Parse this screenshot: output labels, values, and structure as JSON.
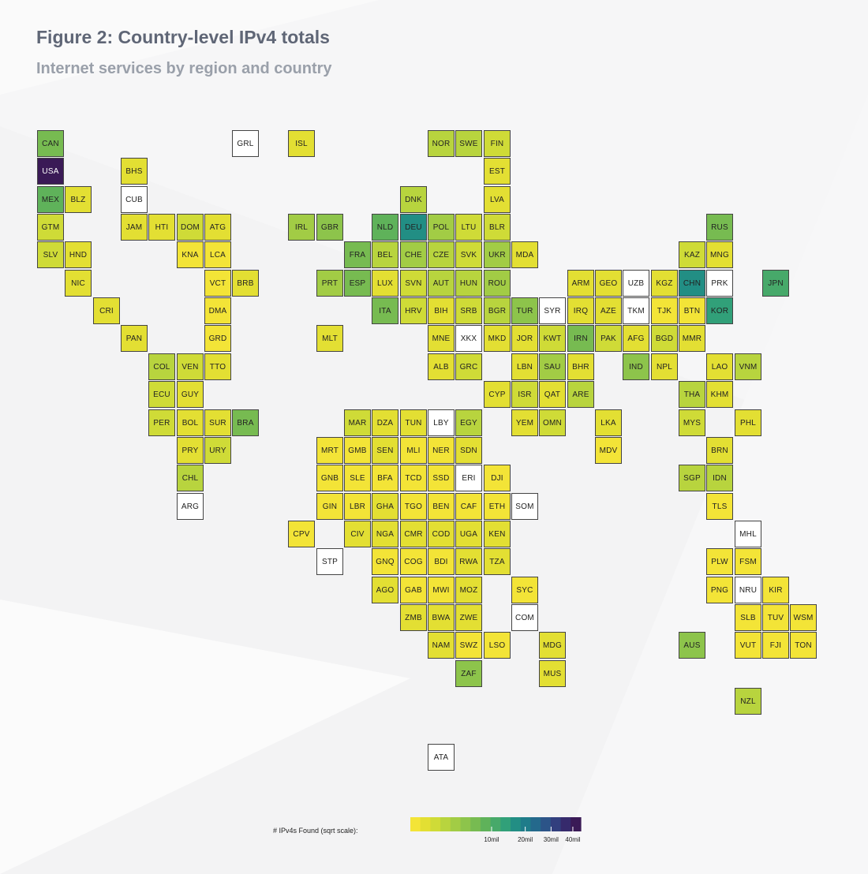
{
  "header": {
    "title": "Figure 2: Country-level IPv4 totals",
    "subtitle": "Internet services by region and country"
  },
  "legend": {
    "label": "# IPv4s Found (sqrt scale):",
    "ticks": [
      "10mil",
      "20mil",
      "30mil",
      "40mil"
    ],
    "tick_values": [
      10,
      20,
      30,
      40
    ],
    "max": 44
  },
  "colors": {
    "no_data": "#ffffff",
    "scale": [
      "#f3e437",
      "#e3df33",
      "#cfdb37",
      "#b8d43e",
      "#a2cc45",
      "#8dc44b",
      "#77bb51",
      "#5fb25a",
      "#47a96a",
      "#31a079",
      "#228e84",
      "#1f7c8a",
      "#24698c",
      "#2c5488",
      "#323f7e",
      "#362a6c",
      "#3a1a56"
    ]
  },
  "chart_data": {
    "type": "heatmap",
    "title": "Figure 2: Country-level IPv4 totals",
    "subtitle": "Internet services by region and country",
    "legend_title": "# IPv4s Found (sqrt scale)",
    "scale": "sqrt",
    "unit": "millions of IPv4 addresses",
    "tiles": [
      {
        "code": "CAN",
        "col": 0,
        "row": 0,
        "value": 6.0
      },
      {
        "code": "GRL",
        "col": 7,
        "row": 0,
        "value": null
      },
      {
        "code": "ISL",
        "col": 9,
        "row": 0,
        "value": 0.1
      },
      {
        "code": "NOR",
        "col": 14,
        "row": 0,
        "value": 1.2
      },
      {
        "code": "SWE",
        "col": 15,
        "row": 0,
        "value": 2.0
      },
      {
        "code": "FIN",
        "col": 16,
        "row": 0,
        "value": 0.9
      },
      {
        "code": "USA",
        "col": 0,
        "row": 1,
        "value": 44.0
      },
      {
        "code": "BHS",
        "col": 3,
        "row": 1,
        "value": 0.05
      },
      {
        "code": "EST",
        "col": 16,
        "row": 1,
        "value": 0.3
      },
      {
        "code": "MEX",
        "col": 0,
        "row": 2,
        "value": 9.0
      },
      {
        "code": "BLZ",
        "col": 1,
        "row": 2,
        "value": 0.05
      },
      {
        "code": "CUB",
        "col": 3,
        "row": 2,
        "value": null
      },
      {
        "code": "DNK",
        "col": 13,
        "row": 2,
        "value": 1.5
      },
      {
        "code": "LVA",
        "col": 16,
        "row": 2,
        "value": 0.3
      },
      {
        "code": "GTM",
        "col": 0,
        "row": 3,
        "value": 0.4
      },
      {
        "code": "JAM",
        "col": 3,
        "row": 3,
        "value": 0.1
      },
      {
        "code": "HTI",
        "col": 4,
        "row": 3,
        "value": 0.05
      },
      {
        "code": "DOM",
        "col": 5,
        "row": 3,
        "value": 1.0
      },
      {
        "code": "ATG",
        "col": 6,
        "row": 3,
        "value": 0.05
      },
      {
        "code": "IRL",
        "col": 9,
        "row": 3,
        "value": 3.0
      },
      {
        "code": "GBR",
        "col": 10,
        "row": 3,
        "value": 4.5
      },
      {
        "code": "NLD",
        "col": 12,
        "row": 3,
        "value": 8.0
      },
      {
        "code": "DEU",
        "col": 13,
        "row": 3,
        "value": 17.0
      },
      {
        "code": "POL",
        "col": 14,
        "row": 3,
        "value": 2.5
      },
      {
        "code": "LTU",
        "col": 15,
        "row": 3,
        "value": 0.6
      },
      {
        "code": "BLR",
        "col": 16,
        "row": 3,
        "value": 0.5
      },
      {
        "code": "RUS",
        "col": 24,
        "row": 3,
        "value": 7.0
      },
      {
        "code": "SLV",
        "col": 0,
        "row": 4,
        "value": 0.4
      },
      {
        "code": "HND",
        "col": 1,
        "row": 4,
        "value": 0.2
      },
      {
        "code": "KNA",
        "col": 5,
        "row": 4,
        "value": 0.02
      },
      {
        "code": "LCA",
        "col": 6,
        "row": 4,
        "value": 0.02
      },
      {
        "code": "FRA",
        "col": 11,
        "row": 4,
        "value": 5.5
      },
      {
        "code": "BEL",
        "col": 12,
        "row": 4,
        "value": 2.0
      },
      {
        "code": "CHE",
        "col": 13,
        "row": 4,
        "value": 2.2
      },
      {
        "code": "CZE",
        "col": 14,
        "row": 4,
        "value": 2.0
      },
      {
        "code": "SVK",
        "col": 15,
        "row": 4,
        "value": 0.6
      },
      {
        "code": "UKR",
        "col": 16,
        "row": 4,
        "value": 2.2
      },
      {
        "code": "MDA",
        "col": 17,
        "row": 4,
        "value": 0.3
      },
      {
        "code": "KAZ",
        "col": 23,
        "row": 4,
        "value": 1.0
      },
      {
        "code": "MNG",
        "col": 24,
        "row": 4,
        "value": 0.1
      },
      {
        "code": "NIC",
        "col": 1,
        "row": 5,
        "value": 0.1
      },
      {
        "code": "VCT",
        "col": 6,
        "row": 5,
        "value": 0.02
      },
      {
        "code": "BRB",
        "col": 7,
        "row": 5,
        "value": 0.05
      },
      {
        "code": "PRT",
        "col": 10,
        "row": 5,
        "value": 3.0
      },
      {
        "code": "ESP",
        "col": 11,
        "row": 5,
        "value": 6.0
      },
      {
        "code": "LUX",
        "col": 12,
        "row": 5,
        "value": 0.3
      },
      {
        "code": "SVN",
        "col": 13,
        "row": 5,
        "value": 0.5
      },
      {
        "code": "AUT",
        "col": 14,
        "row": 5,
        "value": 1.5
      },
      {
        "code": "HUN",
        "col": 15,
        "row": 5,
        "value": 1.5
      },
      {
        "code": "ROU",
        "col": 16,
        "row": 5,
        "value": 2.5
      },
      {
        "code": "ARM",
        "col": 19,
        "row": 5,
        "value": 0.2
      },
      {
        "code": "GEO",
        "col": 20,
        "row": 5,
        "value": 0.3
      },
      {
        "code": "UZB",
        "col": 21,
        "row": 5,
        "value": null
      },
      {
        "code": "KGZ",
        "col": 22,
        "row": 5,
        "value": 0.05
      },
      {
        "code": "CHN",
        "col": 23,
        "row": 5,
        "value": 16.0
      },
      {
        "code": "PRK",
        "col": 24,
        "row": 5,
        "value": null
      },
      {
        "code": "JPN",
        "col": 26,
        "row": 5,
        "value": 10.0
      },
      {
        "code": "CRI",
        "col": 2,
        "row": 6,
        "value": 0.3
      },
      {
        "code": "DMA",
        "col": 6,
        "row": 6,
        "value": 0.02
      },
      {
        "code": "ITA",
        "col": 12,
        "row": 6,
        "value": 7.0
      },
      {
        "code": "HRV",
        "col": 13,
        "row": 6,
        "value": 0.8
      },
      {
        "code": "BIH",
        "col": 14,
        "row": 6,
        "value": 0.3
      },
      {
        "code": "SRB",
        "col": 15,
        "row": 6,
        "value": 0.6
      },
      {
        "code": "BGR",
        "col": 16,
        "row": 6,
        "value": 1.2
      },
      {
        "code": "TUR",
        "col": 17,
        "row": 6,
        "value": 4.0
      },
      {
        "code": "SYR",
        "col": 18,
        "row": 6,
        "value": null
      },
      {
        "code": "IRQ",
        "col": 19,
        "row": 6,
        "value": 0.3
      },
      {
        "code": "AZE",
        "col": 20,
        "row": 6,
        "value": 0.3
      },
      {
        "code": "TKM",
        "col": 21,
        "row": 6,
        "value": null
      },
      {
        "code": "TJK",
        "col": 22,
        "row": 6,
        "value": 0.02
      },
      {
        "code": "BTN",
        "col": 23,
        "row": 6,
        "value": 0.02
      },
      {
        "code": "KOR",
        "col": 24,
        "row": 6,
        "value": 14.0
      },
      {
        "code": "PAN",
        "col": 3,
        "row": 7,
        "value": 0.2
      },
      {
        "code": "GRD",
        "col": 6,
        "row": 7,
        "value": 0.02
      },
      {
        "code": "MLT",
        "col": 10,
        "row": 7,
        "value": 0.1
      },
      {
        "code": "MNE",
        "col": 14,
        "row": 7,
        "value": 0.1
      },
      {
        "code": "XKX",
        "col": 15,
        "row": 7,
        "value": null
      },
      {
        "code": "MKD",
        "col": 16,
        "row": 7,
        "value": 0.3
      },
      {
        "code": "JOR",
        "col": 17,
        "row": 7,
        "value": 0.3
      },
      {
        "code": "KWT",
        "col": 18,
        "row": 7,
        "value": 1.0
      },
      {
        "code": "IRN",
        "col": 19,
        "row": 7,
        "value": 6.5
      },
      {
        "code": "PAK",
        "col": 20,
        "row": 7,
        "value": 1.0
      },
      {
        "code": "AFG",
        "col": 21,
        "row": 7,
        "value": 0.05
      },
      {
        "code": "BGD",
        "col": 22,
        "row": 7,
        "value": 0.4
      },
      {
        "code": "MMR",
        "col": 23,
        "row": 7,
        "value": 0.1
      },
      {
        "code": "COL",
        "col": 4,
        "row": 8,
        "value": 1.5
      },
      {
        "code": "VEN",
        "col": 5,
        "row": 8,
        "value": 0.8
      },
      {
        "code": "TTO",
        "col": 6,
        "row": 8,
        "value": 0.1
      },
      {
        "code": "ALB",
        "col": 14,
        "row": 8,
        "value": 0.2
      },
      {
        "code": "GRC",
        "col": 15,
        "row": 8,
        "value": 1.0
      },
      {
        "code": "LBN",
        "col": 17,
        "row": 8,
        "value": 0.2
      },
      {
        "code": "SAU",
        "col": 18,
        "row": 8,
        "value": 2.5
      },
      {
        "code": "BHR",
        "col": 19,
        "row": 8,
        "value": 0.2
      },
      {
        "code": "IND",
        "col": 21,
        "row": 8,
        "value": 3.5
      },
      {
        "code": "NPL",
        "col": 22,
        "row": 8,
        "value": 0.1
      },
      {
        "code": "LAO",
        "col": 24,
        "row": 8,
        "value": 0.05
      },
      {
        "code": "VNM",
        "col": 25,
        "row": 8,
        "value": 1.5
      },
      {
        "code": "ECU",
        "col": 4,
        "row": 9,
        "value": 0.8
      },
      {
        "code": "GUY",
        "col": 5,
        "row": 9,
        "value": 0.05
      },
      {
        "code": "CYP",
        "col": 16,
        "row": 9,
        "value": 0.2
      },
      {
        "code": "ISR",
        "col": 17,
        "row": 9,
        "value": 0.8
      },
      {
        "code": "QAT",
        "col": 18,
        "row": 9,
        "value": 0.3
      },
      {
        "code": "ARE",
        "col": 19,
        "row": 9,
        "value": 1.8
      },
      {
        "code": "THA",
        "col": 23,
        "row": 9,
        "value": 2.0
      },
      {
        "code": "KHM",
        "col": 24,
        "row": 9,
        "value": 0.1
      },
      {
        "code": "PER",
        "col": 4,
        "row": 10,
        "value": 0.6
      },
      {
        "code": "BOL",
        "col": 5,
        "row": 10,
        "value": 0.2
      },
      {
        "code": "SUR",
        "col": 6,
        "row": 10,
        "value": 0.05
      },
      {
        "code": "BRA",
        "col": 7,
        "row": 10,
        "value": 7.0
      },
      {
        "code": "MAR",
        "col": 11,
        "row": 10,
        "value": 0.6
      },
      {
        "code": "DZA",
        "col": 12,
        "row": 10,
        "value": 0.3
      },
      {
        "code": "TUN",
        "col": 13,
        "row": 10,
        "value": 0.3
      },
      {
        "code": "LBY",
        "col": 14,
        "row": 10,
        "value": null
      },
      {
        "code": "EGY",
        "col": 15,
        "row": 10,
        "value": 1.2
      },
      {
        "code": "YEM",
        "col": 17,
        "row": 10,
        "value": 0.05
      },
      {
        "code": "OMN",
        "col": 18,
        "row": 10,
        "value": 0.8
      },
      {
        "code": "LKA",
        "col": 20,
        "row": 10,
        "value": 0.2
      },
      {
        "code": "MYS",
        "col": 23,
        "row": 10,
        "value": 0.7
      },
      {
        "code": "PHL",
        "col": 25,
        "row": 10,
        "value": 0.3
      },
      {
        "code": "PRY",
        "col": 5,
        "row": 11,
        "value": 0.2
      },
      {
        "code": "URY",
        "col": 6,
        "row": 11,
        "value": 0.6
      },
      {
        "code": "MRT",
        "col": 10,
        "row": 11,
        "value": 0.02
      },
      {
        "code": "GMB",
        "col": 11,
        "row": 11,
        "value": 0.02
      },
      {
        "code": "SEN",
        "col": 12,
        "row": 11,
        "value": 0.1
      },
      {
        "code": "MLI",
        "col": 13,
        "row": 11,
        "value": 0.02
      },
      {
        "code": "NER",
        "col": 14,
        "row": 11,
        "value": 0.02
      },
      {
        "code": "SDN",
        "col": 15,
        "row": 11,
        "value": 0.1
      },
      {
        "code": "MDV",
        "col": 20,
        "row": 11,
        "value": 0.02
      },
      {
        "code": "BRN",
        "col": 24,
        "row": 11,
        "value": 0.05
      },
      {
        "code": "CHL",
        "col": 5,
        "row": 12,
        "value": 1.2
      },
      {
        "code": "GNB",
        "col": 10,
        "row": 12,
        "value": 0.02
      },
      {
        "code": "SLE",
        "col": 11,
        "row": 12,
        "value": 0.02
      },
      {
        "code": "BFA",
        "col": 12,
        "row": 12,
        "value": 0.02
      },
      {
        "code": "TCD",
        "col": 13,
        "row": 12,
        "value": 0.02
      },
      {
        "code": "SSD",
        "col": 14,
        "row": 12,
        "value": 0.02
      },
      {
        "code": "ERI",
        "col": 15,
        "row": 12,
        "value": null
      },
      {
        "code": "DJI",
        "col": 16,
        "row": 12,
        "value": 0.02
      },
      {
        "code": "SGP",
        "col": 23,
        "row": 12,
        "value": 1.2
      },
      {
        "code": "IDN",
        "col": 24,
        "row": 12,
        "value": 1.6
      },
      {
        "code": "ARG",
        "col": 5,
        "row": 13,
        "value": null
      },
      {
        "code": "GIN",
        "col": 10,
        "row": 13,
        "value": 0.02
      },
      {
        "code": "LBR",
        "col": 11,
        "row": 13,
        "value": 0.02
      },
      {
        "code": "GHA",
        "col": 12,
        "row": 13,
        "value": 0.1
      },
      {
        "code": "TGO",
        "col": 13,
        "row": 13,
        "value": 0.02
      },
      {
        "code": "BEN",
        "col": 14,
        "row": 13,
        "value": 0.02
      },
      {
        "code": "CAF",
        "col": 15,
        "row": 13,
        "value": 0.02
      },
      {
        "code": "ETH",
        "col": 16,
        "row": 13,
        "value": 0.02
      },
      {
        "code": "SOM",
        "col": 17,
        "row": 13,
        "value": null
      },
      {
        "code": "TLS",
        "col": 24,
        "row": 13,
        "value": 0.02
      },
      {
        "code": "CPV",
        "col": 9,
        "row": 14,
        "value": 0.02
      },
      {
        "code": "CIV",
        "col": 11,
        "row": 14,
        "value": 0.1
      },
      {
        "code": "NGA",
        "col": 12,
        "row": 14,
        "value": 0.2
      },
      {
        "code": "CMR",
        "col": 13,
        "row": 14,
        "value": 0.05
      },
      {
        "code": "COD",
        "col": 14,
        "row": 14,
        "value": 0.05
      },
      {
        "code": "UGA",
        "col": 15,
        "row": 14,
        "value": 0.1
      },
      {
        "code": "KEN",
        "col": 16,
        "row": 14,
        "value": 0.2
      },
      {
        "code": "MHL",
        "col": 25,
        "row": 14,
        "value": null
      },
      {
        "code": "STP",
        "col": 10,
        "row": 15,
        "value": null
      },
      {
        "code": "GNQ",
        "col": 12,
        "row": 15,
        "value": 0.02
      },
      {
        "code": "COG",
        "col": 13,
        "row": 15,
        "value": 0.02
      },
      {
        "code": "BDI",
        "col": 14,
        "row": 15,
        "value": 0.02
      },
      {
        "code": "RWA",
        "col": 15,
        "row": 15,
        "value": 0.05
      },
      {
        "code": "TZA",
        "col": 16,
        "row": 15,
        "value": 0.1
      },
      {
        "code": "PLW",
        "col": 24,
        "row": 15,
        "value": 0.02
      },
      {
        "code": "FSM",
        "col": 25,
        "row": 15,
        "value": 0.02
      },
      {
        "code": "AGO",
        "col": 12,
        "row": 16,
        "value": 0.1
      },
      {
        "code": "GAB",
        "col": 13,
        "row": 16,
        "value": 0.02
      },
      {
        "code": "MWI",
        "col": 14,
        "row": 16,
        "value": 0.02
      },
      {
        "code": "MOZ",
        "col": 15,
        "row": 16,
        "value": 0.05
      },
      {
        "code": "SYC",
        "col": 17,
        "row": 16,
        "value": 0.02
      },
      {
        "code": "PNG",
        "col": 24,
        "row": 16,
        "value": 0.02
      },
      {
        "code": "NRU",
        "col": 25,
        "row": 16,
        "value": null
      },
      {
        "code": "KIR",
        "col": 26,
        "row": 16,
        "value": 0.02
      },
      {
        "code": "ZMB",
        "col": 13,
        "row": 17,
        "value": 0.05
      },
      {
        "code": "BWA",
        "col": 14,
        "row": 17,
        "value": 0.05
      },
      {
        "code": "ZWE",
        "col": 15,
        "row": 17,
        "value": 0.05
      },
      {
        "code": "COM",
        "col": 17,
        "row": 17,
        "value": null
      },
      {
        "code": "SLB",
        "col": 25,
        "row": 17,
        "value": 0.02
      },
      {
        "code": "TUV",
        "col": 26,
        "row": 17,
        "value": 0.01
      },
      {
        "code": "WSM",
        "col": 27,
        "row": 17,
        "value": 0.02
      },
      {
        "code": "NAM",
        "col": 14,
        "row": 18,
        "value": 0.05
      },
      {
        "code": "SWZ",
        "col": 15,
        "row": 18,
        "value": 0.02
      },
      {
        "code": "LSO",
        "col": 16,
        "row": 18,
        "value": 0.02
      },
      {
        "code": "MDG",
        "col": 18,
        "row": 18,
        "value": 0.05
      },
      {
        "code": "AUS",
        "col": 23,
        "row": 18,
        "value": 5.0
      },
      {
        "code": "VUT",
        "col": 25,
        "row": 18,
        "value": 0.02
      },
      {
        "code": "FJI",
        "col": 26,
        "row": 18,
        "value": 0.02
      },
      {
        "code": "TON",
        "col": 27,
        "row": 18,
        "value": 0.02
      },
      {
        "code": "ZAF",
        "col": 15,
        "row": 19,
        "value": 3.5
      },
      {
        "code": "MUS",
        "col": 18,
        "row": 19,
        "value": 0.1
      },
      {
        "code": "NZL",
        "col": 25,
        "row": 20,
        "value": 1.5
      },
      {
        "code": "ATA",
        "col": 14,
        "row": 22,
        "value": null
      }
    ]
  }
}
